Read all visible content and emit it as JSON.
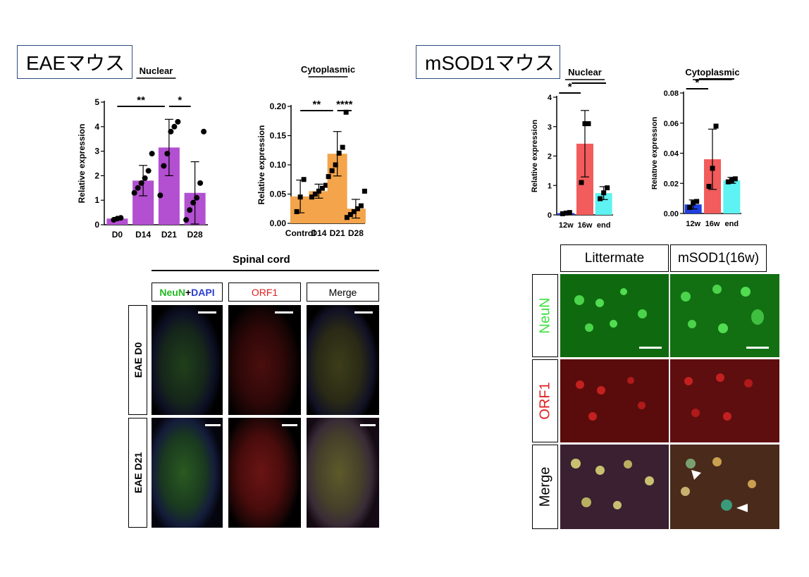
{
  "panels": {
    "eae_title": "EAEマウス",
    "msod1_title": "mSOD1マウス"
  },
  "chart_data": [
    {
      "id": "eae-nuclear",
      "type": "bar",
      "title": "Nuclear",
      "ylabel": "Relative expression",
      "categories": [
        "D0",
        "D14",
        "D21",
        "D28"
      ],
      "values": [
        0.25,
        1.8,
        3.15,
        1.3
      ],
      "errors": [
        0.05,
        0.62,
        1.15,
        1.27
      ],
      "points": [
        [
          0.2,
          0.25,
          0.28
        ],
        [
          1.3,
          1.5,
          1.7,
          1.9,
          2.2,
          2.9
        ],
        [
          1.2,
          2.4,
          2.9,
          3.8,
          4.0,
          4.2
        ],
        [
          0.2,
          0.6,
          0.9,
          1.1,
          1.7,
          3.8
        ]
      ],
      "ylim": [
        0,
        5
      ],
      "yticks": [
        "0",
        "1",
        "2",
        "3",
        "4",
        "5"
      ],
      "ytick_values": [
        0,
        1,
        2,
        3,
        4,
        5
      ],
      "colors": [
        "#b34fd1",
        "#b34fd1",
        "#b34fd1",
        "#b34fd1"
      ],
      "marker": "circle",
      "significance": [
        {
          "from": 0,
          "to": 2,
          "label": "**"
        },
        {
          "from": 2,
          "to": 3,
          "label": "*"
        }
      ]
    },
    {
      "id": "eae-cytoplasmic",
      "type": "bar",
      "title": "Cytoplasmic",
      "ylabel": "Relative expression",
      "categories": [
        "Control",
        "D14",
        "D21",
        "D28"
      ],
      "values": [
        0.046,
        0.055,
        0.119,
        0.025
      ],
      "errors": [
        0.028,
        0.012,
        0.038,
        0.016
      ],
      "points": [
        [
          0.02,
          0.045,
          0.075
        ],
        [
          0.045,
          0.05,
          0.055,
          0.06,
          0.065
        ],
        [
          0.08,
          0.09,
          0.1,
          0.12,
          0.13,
          0.19
        ],
        [
          0.01,
          0.015,
          0.02,
          0.025,
          0.03,
          0.055
        ]
      ],
      "ylim": [
        0,
        0.2
      ],
      "yticks": [
        "0.00",
        "0.05",
        "0.10",
        "0.15",
        "0.20"
      ],
      "ytick_values": [
        0,
        0.05,
        0.1,
        0.15,
        0.2
      ],
      "colors": [
        "#f4a44a",
        "#f4a44a",
        "#f4a44a",
        "#f4a44a"
      ],
      "marker": "square",
      "significance": [
        {
          "from": 0,
          "to": 2,
          "label": "**"
        },
        {
          "from": 2,
          "to": 3,
          "label": "****"
        }
      ]
    },
    {
      "id": "msod1-nuclear",
      "type": "bar",
      "title": "Nuclear",
      "ylabel": "Relative expression",
      "categories": [
        "12w",
        "16w",
        "end"
      ],
      "values": [
        0.06,
        2.42,
        0.74
      ],
      "errors": [
        0.03,
        1.13,
        0.22
      ],
      "points": [
        [
          0.04,
          0.06,
          0.08
        ],
        [
          1.1,
          3.1,
          3.1
        ],
        [
          0.55,
          0.75,
          0.92
        ]
      ],
      "ylim": [
        0,
        4
      ],
      "yticks": [
        "0",
        "1",
        "2",
        "3",
        "4"
      ],
      "ytick_values": [
        0,
        1,
        2,
        3,
        4
      ],
      "colors": [
        "#1f3fe0",
        "#f25c5c",
        "#5ef2f2"
      ],
      "marker": "square",
      "significance": [
        {
          "from": 0,
          "to": 1,
          "label": "*"
        }
      ],
      "topline": true
    },
    {
      "id": "msod1-cytoplasmic",
      "type": "bar",
      "title": "Cytoplasmic",
      "ylabel": "Relative expression",
      "categories": [
        "12w",
        "16w",
        "end"
      ],
      "values": [
        0.006,
        0.036,
        0.022
      ],
      "errors": [
        0.003,
        0.02,
        0.002
      ],
      "points": [
        [
          0.004,
          0.007,
          0.008
        ],
        [
          0.018,
          0.03,
          0.058
        ],
        [
          0.021,
          0.022,
          0.023
        ]
      ],
      "ylim": [
        0,
        0.08
      ],
      "yticks": [
        "0.00",
        "0.02",
        "0.04",
        "0.06",
        "0.08"
      ],
      "ytick_values": [
        0,
        0.02,
        0.04,
        0.06,
        0.08
      ],
      "colors": [
        "#1f3fe0",
        "#f25c5c",
        "#5ef2f2"
      ],
      "marker": "square",
      "significance": [
        {
          "from": 0,
          "to": 1,
          "label": "*"
        }
      ],
      "topline": true
    }
  ],
  "spinal": {
    "title": "Spinal cord",
    "col_neun": "NeuN",
    "col_plus": "+",
    "col_dapi": "DAPI",
    "col_orf1": "ORF1",
    "col_merge": "Merge",
    "row_d0": "EAE D0",
    "row_d21": "EAE D21",
    "color_neun": "#22b822",
    "color_dapi": "#2a3fd0",
    "color_orf1": "#e02020"
  },
  "micro": {
    "col_littermate": "Littermate",
    "col_msod1": "mSOD1(16w)",
    "row_neun": "NeuN",
    "row_orf1": "ORF1",
    "row_merge": "Merge",
    "color_neun": "#3ce03c",
    "color_orf1": "#e02020"
  }
}
